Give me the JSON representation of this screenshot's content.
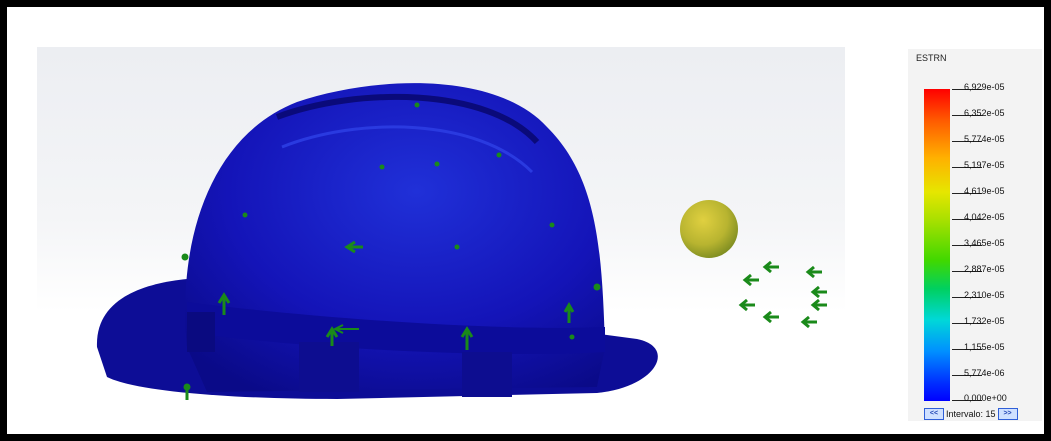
{
  "result_title": "ESTRN",
  "legend": {
    "values": [
      "6,929e-05",
      "6,352e-05",
      "5,774e-05",
      "5,197e-05",
      "4,619e-05",
      "4,042e-05",
      "3,465e-05",
      "2,887e-05",
      "2,310e-05",
      "1,732e-05",
      "1,155e-05",
      "5,774e-06",
      "0,000e+00"
    ],
    "interval_label": "Intervalo: 15",
    "prev_button": "<<",
    "next_button": ">>"
  },
  "colors": {
    "helmet_blue": "#1212b8",
    "arrow_green": "#1a8a1a",
    "sphere_yellow": "#c8c040"
  }
}
